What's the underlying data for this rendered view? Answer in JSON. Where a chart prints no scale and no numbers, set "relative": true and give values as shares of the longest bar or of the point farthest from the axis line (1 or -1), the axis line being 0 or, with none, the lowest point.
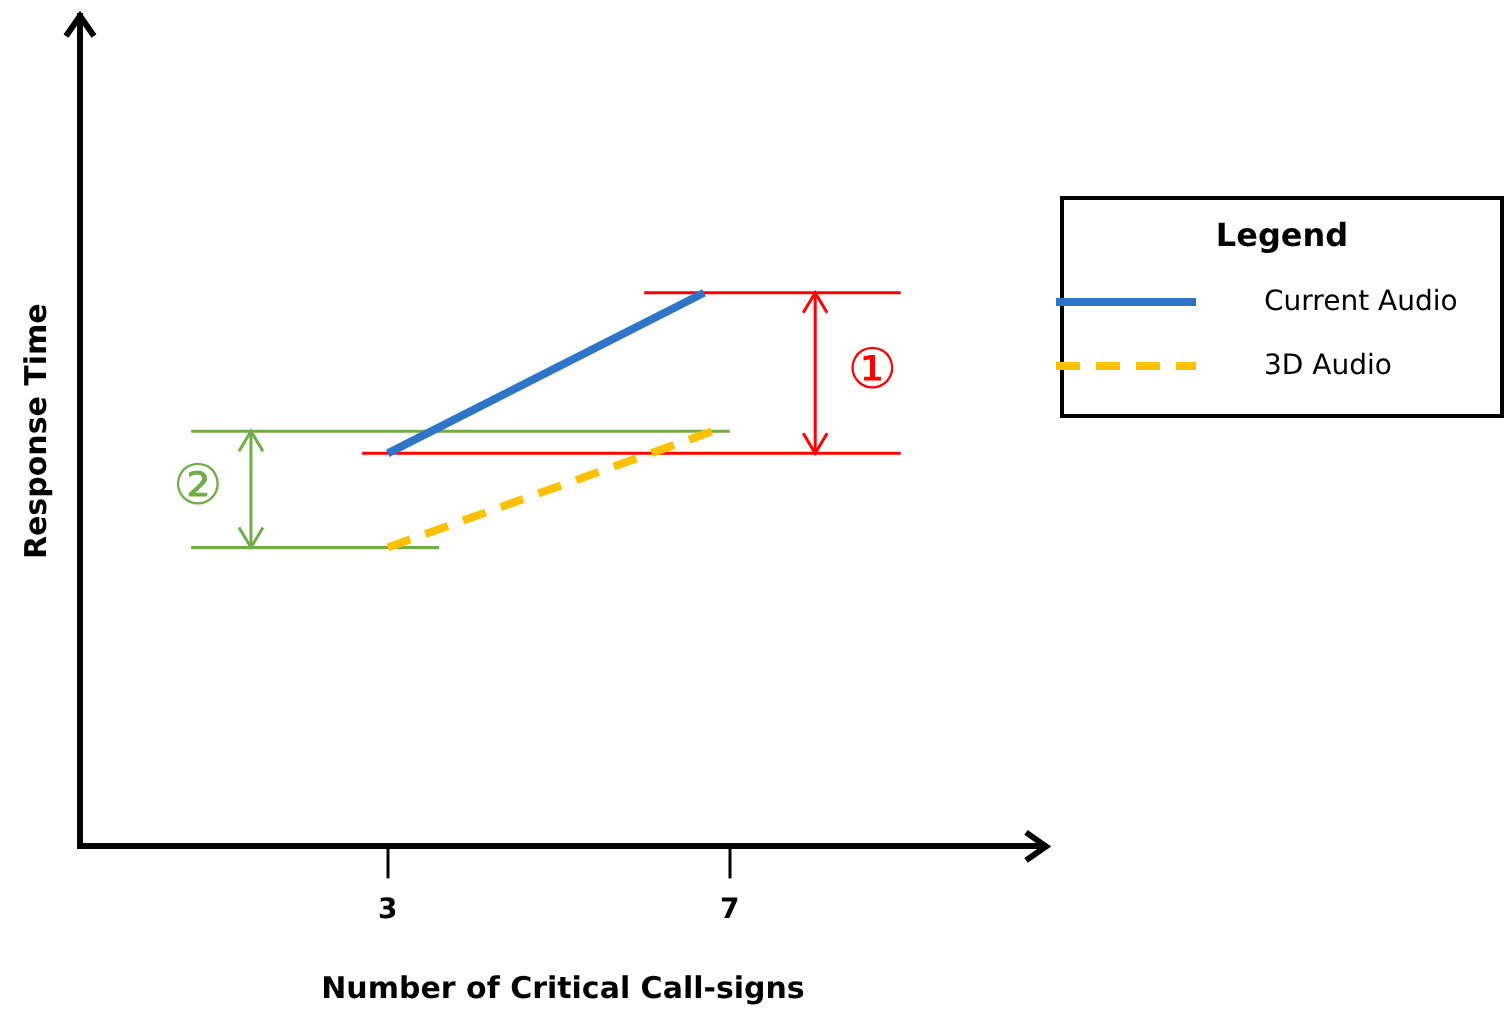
{
  "chart_data": {
    "type": "line",
    "xlabel": "Number of Critical Call-signs",
    "ylabel": "Response Time",
    "legend_title": "Legend",
    "legend": "right",
    "relative": true,
    "grid": false,
    "marker": "none",
    "xlim": [
      -0.6,
      10.7
    ],
    "xticks": [
      3,
      7
    ],
    "series": [
      {
        "name": "Current Audio",
        "color": "#2e75c8",
        "line_style": "solid",
        "x": [
          3,
          6.7
        ],
        "values": [
          0.71,
          1
        ]
      },
      {
        "name": "3D Audio",
        "color": "#ffc000",
        "line_style": "dashed",
        "x": [
          3,
          6.8
        ],
        "values": [
          0.54,
          0.75
        ]
      },
      {
        "color": "#ff0000",
        "x": [
          6,
          9
        ],
        "values": [
          1,
          1
        ]
      },
      {
        "color": "#ff0000",
        "x": [
          2.7,
          9
        ],
        "values": [
          0.71,
          0.71
        ]
      },
      {
        "color": "#ff0000",
        "x": [
          8,
          8
        ],
        "values": [
          1,
          0.71
        ]
      },
      {
        "color": "#70ad47",
        "x": [
          0.7,
          7
        ],
        "values": [
          0.75,
          0.75
        ]
      },
      {
        "color": "#70ad47",
        "x": [
          0.7,
          3.6
        ],
        "values": [
          0.54,
          0.54
        ]
      },
      {
        "color": "#70ad47",
        "x": [
          1.4,
          1.4
        ],
        "values": [
          0.75,
          0.54
        ]
      }
    ],
    "annotations": [
      "①",
      "②"
    ]
  }
}
